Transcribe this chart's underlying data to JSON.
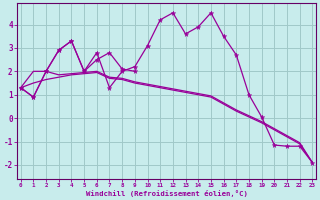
{
  "xlabel": "Windchill (Refroidissement éolien,°C)",
  "background_color": "#c8ecec",
  "grid_color": "#a0c8c8",
  "line_color": "#990099",
  "spine_color": "#660066",
  "x_hours": [
    0,
    1,
    2,
    3,
    4,
    5,
    6,
    7,
    8,
    9,
    10,
    11,
    12,
    13,
    14,
    15,
    16,
    17,
    18,
    19,
    20,
    21,
    22,
    23
  ],
  "series1_x": [
    0,
    1,
    2,
    3,
    4,
    5,
    6,
    7,
    8,
    9,
    10,
    11,
    12,
    13,
    14,
    15,
    16,
    17,
    18,
    19,
    20,
    21,
    22,
    23
  ],
  "series1_y": [
    1.3,
    0.9,
    2.0,
    2.9,
    3.3,
    2.0,
    2.8,
    1.3,
    2.0,
    2.2,
    3.1,
    4.2,
    4.5,
    3.6,
    3.9,
    4.5,
    3.5,
    2.7,
    1.0,
    0.05,
    -1.15,
    -1.2,
    -1.2,
    -1.9
  ],
  "series2_x": [
    0,
    1,
    2,
    3,
    4,
    5,
    6,
    7,
    8,
    9
  ],
  "series2_y": [
    1.3,
    0.9,
    2.0,
    2.9,
    3.3,
    2.0,
    2.5,
    2.8,
    2.1,
    2.0
  ],
  "series3_x": [
    0,
    1,
    2,
    3,
    4,
    5,
    6,
    7,
    8,
    9,
    10,
    11,
    12,
    13,
    14,
    15,
    16,
    17,
    18,
    19,
    20,
    21,
    22,
    23
  ],
  "series3_y": [
    1.3,
    2.0,
    2.0,
    1.85,
    1.9,
    1.95,
    2.0,
    1.75,
    1.7,
    1.55,
    1.45,
    1.35,
    1.25,
    1.15,
    1.05,
    0.95,
    0.65,
    0.35,
    0.1,
    -0.15,
    -0.45,
    -0.75,
    -1.05,
    -1.9
  ],
  "series4_x": [
    0,
    1,
    2,
    3,
    4,
    5,
    6,
    7,
    8,
    9,
    10,
    11,
    12,
    13,
    14,
    15,
    16,
    17,
    18,
    19,
    20,
    21,
    22,
    23
  ],
  "series4_y": [
    1.3,
    1.5,
    1.65,
    1.75,
    1.85,
    1.9,
    1.95,
    1.7,
    1.65,
    1.5,
    1.4,
    1.3,
    1.2,
    1.1,
    1.0,
    0.9,
    0.6,
    0.3,
    0.05,
    -0.2,
    -0.5,
    -0.8,
    -1.1,
    -1.9
  ],
  "ylim": [
    -2.6,
    4.9
  ],
  "xlim": [
    -0.3,
    23.3
  ],
  "yticks": [
    -2,
    -1,
    0,
    1,
    2,
    3,
    4
  ],
  "xticks": [
    0,
    1,
    2,
    3,
    4,
    5,
    6,
    7,
    8,
    9,
    10,
    11,
    12,
    13,
    14,
    15,
    16,
    17,
    18,
    19,
    20,
    21,
    22,
    23
  ]
}
